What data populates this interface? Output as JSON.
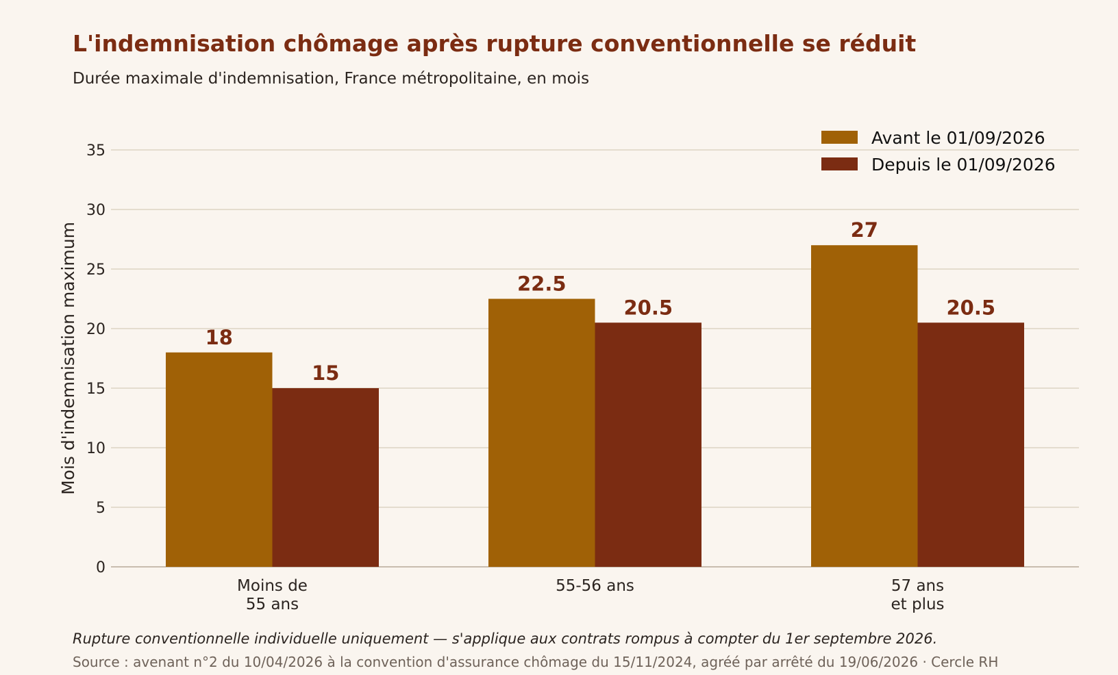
{
  "header": {
    "title": "L'indemnisation chômage après rupture conventionnelle se réduit",
    "subtitle": "Durée maximale d'indemnisation, France métropolitaine, en mois"
  },
  "footer": {
    "note": "Rupture conventionnelle individuelle uniquement — s'applique aux contrats rompus à compter du 1er septembre 2026.",
    "source": "Source : avenant n°2 du 10/04/2026 à la convention d'assurance chômage du 15/11/2024, agréé par arrêté du 19/06/2026 · Cercle RH"
  },
  "chart_data": {
    "type": "bar",
    "title": "L'indemnisation chômage après rupture conventionnelle se réduit",
    "subtitle": "Durée maximale d'indemnisation, France métropolitaine, en mois",
    "xlabel": "",
    "ylabel": "Mois d'indemnisation maximum",
    "categories": [
      [
        "Moins de",
        "55 ans"
      ],
      [
        "55-56 ans"
      ],
      [
        "57 ans",
        "et plus"
      ]
    ],
    "series": [
      {
        "name": "Avant le 01/09/2026",
        "values": [
          18,
          22.5,
          27
        ],
        "labels": [
          "18",
          "22.5",
          "27"
        ],
        "color": "#a06106"
      },
      {
        "name": "Depuis le 01/09/2026",
        "values": [
          15,
          20.5,
          20.5
        ],
        "labels": [
          "15",
          "20.5",
          "20.5"
        ],
        "color": "#7b2c12"
      }
    ],
    "ylim": [
      0,
      35
    ],
    "yticks": [
      0,
      5,
      10,
      15,
      20,
      25,
      30,
      35
    ],
    "grid": true,
    "legend": "top-right",
    "colors": {
      "grid": "#ddd3c3",
      "axis": "#b7aa98",
      "value_label": "#7b2c12"
    }
  }
}
